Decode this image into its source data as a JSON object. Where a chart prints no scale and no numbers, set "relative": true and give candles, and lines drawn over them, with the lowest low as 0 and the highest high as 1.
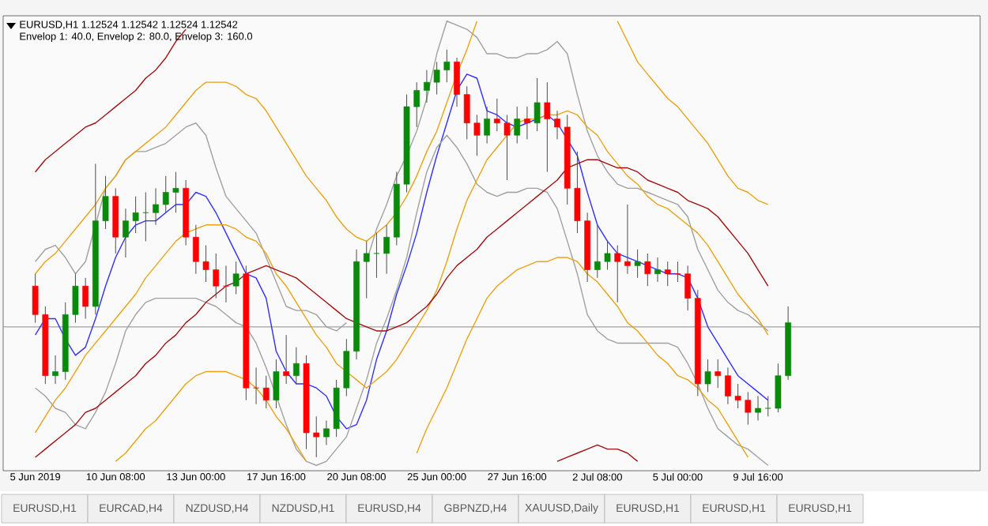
{
  "chart_data": {
    "type": "candlestick",
    "relative": true,
    "tick_labels": "x",
    "grid": false,
    "annotations": [
      "EURUSD,H1  1.12524 1.12542 1.12524 1.12542",
      "Envelop 1: 40.0,  Envelop 2: 80.0,  Envelop 3: 160.0",
      "EURUSD,H1",
      "EURCAD,H4",
      "NZDUSD,H4",
      "NZDUSD,H1",
      "EURUSD,H4",
      "GBPNZD,H4",
      "XAUUSD,Daily",
      "EURUSD,H1",
      "EURUSD,H1",
      "EURUSD,H1"
    ],
    "categories": [
      "5 Jun 2019",
      null,
      null,
      null,
      null,
      null,
      null,
      null,
      "10 Jun 08:00",
      null,
      null,
      null,
      null,
      null,
      null,
      null,
      "13 Jun 00:00",
      null,
      null,
      null,
      null,
      null,
      null,
      null,
      "17 Jun 16:00",
      null,
      null,
      null,
      null,
      null,
      null,
      null,
      "20 Jun 08:00",
      null,
      null,
      null,
      null,
      null,
      null,
      null,
      "25 Jun 00:00",
      null,
      null,
      null,
      null,
      null,
      null,
      null,
      "27 Jun 16:00",
      null,
      null,
      null,
      null,
      null,
      null,
      null,
      "2 Jul 08:00",
      null,
      null,
      null,
      null,
      null,
      null,
      null,
      "5 Jul 00:00",
      null,
      null,
      null,
      null,
      null,
      null,
      null,
      "9 Jul 16:00",
      null,
      null,
      null
    ],
    "ohlc": [
      [
        0.42,
        0.45,
        0.33,
        0.35
      ],
      [
        0.35,
        0.37,
        0.18,
        0.2
      ],
      [
        0.2,
        0.25,
        0.18,
        0.21
      ],
      [
        0.21,
        0.38,
        0.19,
        0.35
      ],
      [
        0.35,
        0.45,
        0.33,
        0.42
      ],
      [
        0.42,
        0.44,
        0.34,
        0.37
      ],
      [
        0.37,
        0.72,
        0.35,
        0.58
      ],
      [
        0.58,
        0.69,
        0.56,
        0.64
      ],
      [
        0.64,
        0.66,
        0.5,
        0.54
      ],
      [
        0.54,
        0.61,
        0.49,
        0.58
      ],
      [
        0.58,
        0.64,
        0.55,
        0.6
      ],
      [
        0.6,
        0.65,
        0.53,
        0.6
      ],
      [
        0.6,
        0.66,
        0.57,
        0.62
      ],
      [
        0.62,
        0.69,
        0.6,
        0.65
      ],
      [
        0.65,
        0.7,
        0.6,
        0.66
      ],
      [
        0.66,
        0.68,
        0.52,
        0.54
      ],
      [
        0.54,
        0.57,
        0.45,
        0.48
      ],
      [
        0.48,
        0.52,
        0.43,
        0.46
      ],
      [
        0.46,
        0.5,
        0.39,
        0.42
      ],
      [
        0.42,
        0.47,
        0.38,
        0.42
      ],
      [
        0.42,
        0.48,
        0.4,
        0.45
      ],
      [
        0.45,
        0.47,
        0.14,
        0.17
      ],
      [
        0.17,
        0.22,
        0.13,
        0.17
      ],
      [
        0.17,
        0.2,
        0.12,
        0.14
      ],
      [
        0.14,
        0.24,
        0.12,
        0.21
      ],
      [
        0.21,
        0.3,
        0.18,
        0.2
      ],
      [
        0.2,
        0.27,
        0.18,
        0.23
      ],
      [
        0.23,
        0.25,
        0.02,
        0.06
      ],
      [
        0.06,
        0.1,
        0.0,
        0.05
      ],
      [
        0.05,
        0.09,
        0.03,
        0.07
      ],
      [
        0.07,
        0.19,
        0.05,
        0.17
      ],
      [
        0.17,
        0.29,
        0.15,
        0.26
      ],
      [
        0.26,
        0.51,
        0.24,
        0.48
      ],
      [
        0.48,
        0.53,
        0.39,
        0.5
      ],
      [
        0.5,
        0.55,
        0.44,
        0.5
      ],
      [
        0.5,
        0.57,
        0.45,
        0.54
      ],
      [
        0.54,
        0.7,
        0.52,
        0.67
      ],
      [
        0.67,
        0.89,
        0.65,
        0.86
      ],
      [
        0.86,
        0.92,
        0.81,
        0.9
      ],
      [
        0.9,
        0.95,
        0.87,
        0.92
      ],
      [
        0.92,
        0.97,
        0.89,
        0.95
      ],
      [
        0.95,
        1.0,
        0.92,
        0.97
      ],
      [
        0.97,
        0.98,
        0.86,
        0.89
      ],
      [
        0.89,
        0.91,
        0.78,
        0.82
      ],
      [
        0.82,
        0.84,
        0.74,
        0.79
      ],
      [
        0.79,
        0.86,
        0.77,
        0.83
      ],
      [
        0.83,
        0.88,
        0.8,
        0.82
      ],
      [
        0.82,
        0.84,
        0.68,
        0.79
      ],
      [
        0.79,
        0.86,
        0.77,
        0.83
      ],
      [
        0.83,
        0.86,
        0.78,
        0.82
      ],
      [
        0.82,
        0.93,
        0.8,
        0.87
      ],
      [
        0.87,
        0.92,
        0.7,
        0.83
      ],
      [
        0.83,
        0.85,
        0.78,
        0.81
      ],
      [
        0.81,
        0.84,
        0.62,
        0.66
      ],
      [
        0.66,
        0.75,
        0.55,
        0.58
      ],
      [
        0.58,
        0.6,
        0.43,
        0.46
      ],
      [
        0.46,
        0.57,
        0.44,
        0.48
      ],
      [
        0.48,
        0.53,
        0.46,
        0.5
      ],
      [
        0.5,
        0.52,
        0.38,
        0.48
      ],
      [
        0.48,
        0.62,
        0.45,
        0.47
      ],
      [
        0.47,
        0.51,
        0.44,
        0.48
      ],
      [
        0.48,
        0.5,
        0.42,
        0.45
      ],
      [
        0.45,
        0.49,
        0.43,
        0.46
      ],
      [
        0.46,
        0.48,
        0.42,
        0.45
      ],
      [
        0.45,
        0.48,
        0.43,
        0.45
      ],
      [
        0.45,
        0.47,
        0.36,
        0.39
      ],
      [
        0.39,
        0.41,
        0.15,
        0.18
      ],
      [
        0.18,
        0.24,
        0.16,
        0.21
      ],
      [
        0.21,
        0.24,
        0.17,
        0.2
      ],
      [
        0.2,
        0.22,
        0.13,
        0.15
      ],
      [
        0.15,
        0.18,
        0.12,
        0.14
      ],
      [
        0.14,
        0.16,
        0.08,
        0.11
      ],
      [
        0.11,
        0.15,
        0.09,
        0.12
      ],
      [
        0.12,
        0.15,
        0.1,
        0.12
      ],
      [
        0.12,
        0.23,
        0.11,
        0.2
      ],
      [
        0.2,
        0.37,
        0.19,
        0.33
      ]
    ],
    "colors": [
      "#ff0000",
      "#ff0000",
      "#0a8a0a",
      "#0a8a0a",
      "#0a8a0a",
      "#ff0000",
      "#0a8a0a",
      "#0a8a0a",
      "#ff0000",
      "#0a8a0a",
      "#0a8a0a",
      "#0a8a0a",
      "#0a8a0a",
      "#0a8a0a",
      "#0a8a0a",
      "#ff0000",
      "#ff0000",
      "#ff0000",
      "#ff0000",
      "#ff0000",
      "#0a8a0a",
      "#ff0000",
      "#ff0000",
      "#ff0000",
      "#0a8a0a",
      "#ff0000",
      "#0a8a0a",
      "#ff0000",
      "#ff0000",
      "#0a8a0a",
      "#0a8a0a",
      "#0a8a0a",
      "#0a8a0a",
      "#0a8a0a",
      "#0a8a0a",
      "#0a8a0a",
      "#0a8a0a",
      "#0a8a0a",
      "#0a8a0a",
      "#0a8a0a",
      "#0a8a0a",
      "#0a8a0a",
      "#ff0000",
      "#ff0000",
      "#ff0000",
      "#0a8a0a",
      "#ff0000",
      "#ff0000",
      "#0a8a0a",
      "#ff0000",
      "#0a8a0a",
      "#ff0000",
      "#ff0000",
      "#ff0000",
      "#ff0000",
      "#ff0000",
      "#0a8a0a",
      "#0a8a0a",
      "#ff0000",
      "#ff0000",
      "#0a8a0a",
      "#ff0000",
      "#0a8a0a",
      "#ff0000",
      "#ff0000",
      "#ff0000",
      "#ff0000",
      "#0a8a0a",
      "#ff0000",
      "#ff0000",
      "#ff0000",
      "#ff0000",
      "#0a8a0a",
      "#0a8a0a",
      "#0a8a0a",
      "#0a8a0a"
    ],
    "ref_lines": [
      {
        "axis": "y",
        "value": 0.32,
        "color": "#a0a0a0"
      }
    ],
    "series": [
      {
        "type": "line",
        "color": "#3030ff",
        "values": [
          0.3,
          0.34,
          0.34,
          0.29,
          0.25,
          0.27,
          0.34,
          0.42,
          0.49,
          0.54,
          0.57,
          0.58,
          0.58,
          0.6,
          0.62,
          0.62,
          0.65,
          0.64,
          0.6,
          0.55,
          0.5,
          0.45,
          0.44,
          0.39,
          0.26,
          0.21,
          0.18,
          0.18,
          0.17,
          0.15,
          0.1,
          0.07,
          0.08,
          0.14,
          0.24,
          0.31,
          0.4,
          0.47,
          0.55,
          0.65,
          0.74,
          0.82,
          0.9,
          0.94,
          0.93,
          0.85,
          0.84,
          0.82,
          0.81,
          0.82,
          0.83,
          0.84,
          0.82,
          0.78,
          0.74,
          0.65,
          0.57,
          0.53,
          0.5,
          0.49,
          0.48,
          0.47,
          0.46,
          0.45,
          0.45,
          0.44,
          0.39,
          0.32,
          0.28,
          0.24,
          0.2,
          0.18,
          0.16,
          0.14,
          null,
          null
        ]
      },
      {
        "type": "line",
        "color": "#a0a0a0",
        "values": [
          0.48,
          0.51,
          0.52,
          0.49,
          0.45,
          0.48,
          0.57,
          0.66,
          0.69,
          0.73,
          0.75,
          0.75,
          0.76,
          0.77,
          0.79,
          0.81,
          0.82,
          0.79,
          0.71,
          0.64,
          0.61,
          0.58,
          0.55,
          0.49,
          0.43,
          0.37,
          0.36,
          0.36,
          0.35,
          0.32,
          0.31,
          0.33,
          null,
          0.48,
          0.56,
          0.62,
          0.69,
          0.74,
          0.8,
          0.88,
          0.99,
          1.07,
          1.06,
          1.05,
          1.03,
          0.99,
          0.99,
          0.98,
          0.98,
          0.99,
          0.99,
          1.0,
          1.02,
          0.99,
          0.89,
          0.8,
          0.74,
          0.7,
          0.67,
          0.66,
          0.66,
          0.65,
          0.64,
          0.63,
          0.62,
          0.59,
          0.51,
          0.46,
          0.41,
          0.38,
          0.36,
          0.35,
          0.33,
          0.31,
          null,
          null
        ]
      },
      {
        "type": "line",
        "color": "#a0a0a0",
        "values": [
          0.17,
          0.15,
          0.12,
          0.11,
          0.08,
          0.07,
          0.11,
          0.16,
          0.23,
          0.31,
          0.35,
          0.38,
          0.39,
          0.39,
          0.39,
          0.39,
          0.39,
          0.38,
          0.37,
          0.35,
          0.33,
          0.32,
          0.28,
          0.22,
          0.15,
          0.08,
          0.02,
          -0.01,
          -0.02,
          -0.01,
          0.02,
          0.05,
          0.12,
          0.19,
          0.28,
          0.34,
          0.41,
          0.49,
          0.6,
          0.7,
          0.76,
          0.79,
          0.76,
          0.72,
          0.67,
          0.65,
          0.64,
          0.65,
          0.65,
          0.66,
          0.66,
          0.65,
          0.61,
          0.53,
          0.45,
          0.35,
          0.31,
          0.29,
          0.28,
          0.28,
          0.28,
          0.28,
          0.28,
          0.28,
          0.27,
          0.23,
          0.18,
          0.12,
          0.07,
          0.05,
          0.03,
          0.02,
          0.0,
          -0.02,
          null,
          null
        ]
      },
      {
        "type": "line",
        "color": "#e8a317",
        "values": [
          0.45,
          0.48,
          0.5,
          0.53,
          0.56,
          0.59,
          0.62,
          0.66,
          0.69,
          0.73,
          0.75,
          0.77,
          0.79,
          0.81,
          0.84,
          0.87,
          0.9,
          0.92,
          0.92,
          0.92,
          0.91,
          0.89,
          0.88,
          0.85,
          0.81,
          0.77,
          0.73,
          0.69,
          0.66,
          0.63,
          0.59,
          0.56,
          0.54,
          0.53,
          0.55,
          0.57,
          0.6,
          0.64,
          0.69,
          0.75,
          0.8,
          0.87,
          0.94,
          1.0,
          1.07,
          null,
          null,
          null,
          null,
          null,
          null,
          null,
          null,
          null,
          null,
          null,
          null,
          null,
          1.07,
          1.02,
          0.97,
          0.94,
          0.91,
          0.88,
          0.86,
          0.83,
          0.8,
          0.77,
          0.73,
          0.69,
          0.66,
          0.65,
          0.63,
          0.62,
          null,
          null
        ]
      },
      {
        "type": "line",
        "color": "#e8a317",
        "values": [
          0.06,
          0.1,
          0.14,
          0.17,
          0.21,
          0.25,
          0.28,
          0.31,
          0.34,
          0.37,
          0.4,
          0.44,
          0.47,
          0.5,
          0.53,
          0.55,
          0.56,
          0.57,
          0.57,
          0.57,
          0.56,
          0.54,
          0.53,
          0.5,
          0.45,
          0.42,
          0.38,
          0.34,
          0.3,
          0.27,
          0.23,
          0.21,
          0.19,
          0.17,
          0.19,
          0.21,
          0.24,
          0.28,
          0.32,
          0.36,
          0.41,
          0.48,
          0.56,
          0.63,
          0.68,
          0.73,
          0.76,
          0.79,
          0.82,
          0.83,
          0.83,
          0.84,
          0.84,
          0.85,
          0.84,
          0.81,
          0.79,
          0.75,
          0.72,
          0.69,
          0.67,
          0.64,
          0.62,
          0.61,
          0.59,
          0.57,
          0.55,
          0.52,
          0.48,
          0.44,
          0.4,
          0.37,
          0.34,
          0.3,
          null,
          null
        ]
      },
      {
        "type": "line",
        "color": "#e8a317",
        "values": [
          null,
          null,
          null,
          null,
          null,
          null,
          null,
          null,
          -0.01,
          0.01,
          0.04,
          0.07,
          0.09,
          0.12,
          0.15,
          0.18,
          0.2,
          0.21,
          0.21,
          0.21,
          0.2,
          0.19,
          0.17,
          0.14,
          0.1,
          0.07,
          0.03,
          -0.01,
          null,
          null,
          null,
          null,
          null,
          null,
          null,
          null,
          null,
          null,
          0.01,
          0.07,
          0.12,
          0.17,
          0.23,
          0.29,
          0.34,
          0.39,
          0.42,
          0.44,
          0.46,
          0.47,
          0.48,
          0.48,
          0.49,
          0.49,
          0.48,
          0.45,
          0.43,
          0.4,
          0.37,
          0.33,
          0.31,
          0.28,
          0.25,
          0.23,
          0.2,
          0.19,
          0.17,
          0.14,
          0.12,
          0.08,
          0.04,
          0.0,
          null,
          null,
          null,
          null
        ]
      },
      {
        "type": "line",
        "color": "#a01010",
        "values": [
          0.7,
          0.73,
          0.75,
          0.77,
          0.79,
          0.81,
          0.82,
          0.84,
          0.86,
          0.88,
          0.9,
          0.93,
          0.95,
          0.98,
          1.02,
          1.05,
          null,
          null,
          null,
          null,
          null,
          null,
          null,
          null,
          null,
          null,
          null,
          null,
          null,
          null,
          null,
          null,
          null,
          null,
          null,
          null,
          null,
          null,
          null,
          null,
          null,
          null,
          null,
          null,
          null,
          null,
          null,
          null,
          null,
          null,
          null,
          null,
          null,
          null,
          null,
          null,
          null,
          null,
          null,
          null,
          null,
          null,
          null,
          null,
          null,
          null,
          null,
          null,
          null,
          null,
          null,
          null,
          null,
          null,
          null,
          null
        ]
      },
      {
        "type": "line",
        "color": "#a01010",
        "values": [
          0.0,
          0.02,
          0.04,
          0.06,
          0.08,
          0.11,
          0.12,
          0.14,
          0.16,
          0.18,
          0.2,
          0.23,
          0.25,
          0.28,
          0.3,
          0.33,
          0.35,
          0.38,
          0.4,
          0.42,
          0.43,
          0.45,
          0.46,
          0.47,
          0.46,
          0.45,
          0.44,
          0.42,
          0.4,
          0.38,
          0.36,
          0.34,
          0.33,
          0.32,
          0.31,
          0.31,
          0.32,
          0.33,
          0.35,
          0.37,
          0.4,
          0.44,
          0.47,
          0.49,
          0.51,
          0.54,
          0.56,
          0.58,
          0.6,
          0.62,
          0.64,
          0.66,
          0.68,
          0.71,
          0.72,
          0.73,
          0.73,
          0.72,
          0.71,
          0.71,
          0.7,
          0.68,
          0.67,
          0.66,
          0.65,
          0.63,
          0.62,
          0.61,
          0.59,
          0.56,
          0.53,
          0.5,
          0.46,
          0.42,
          null,
          null
        ]
      },
      {
        "type": "line",
        "color": "#a01010",
        "values": [
          null,
          null,
          null,
          null,
          null,
          null,
          null,
          null,
          null,
          null,
          null,
          null,
          null,
          null,
          null,
          null,
          null,
          null,
          null,
          null,
          null,
          null,
          null,
          null,
          null,
          null,
          null,
          null,
          null,
          null,
          null,
          null,
          null,
          null,
          null,
          null,
          null,
          null,
          null,
          null,
          null,
          null,
          null,
          null,
          null,
          null,
          null,
          null,
          null,
          null,
          null,
          null,
          -0.01,
          0.0,
          0.01,
          0.02,
          0.03,
          0.02,
          0.02,
          0.01,
          -0.01,
          null,
          null,
          null,
          null,
          null,
          null,
          null,
          null,
          null,
          null,
          null,
          null,
          null,
          null,
          null
        ]
      }
    ]
  }
}
